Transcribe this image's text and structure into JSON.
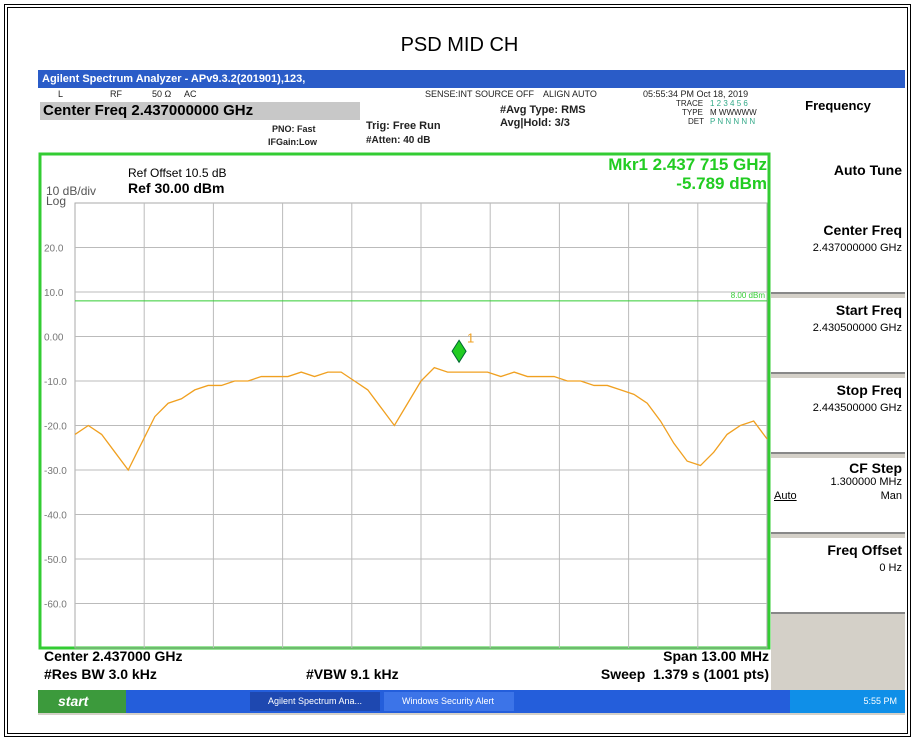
{
  "header": {
    "title": "PSD MID CH"
  },
  "window": {
    "title": "Agilent Spectrum Analyzer - APv9.3.2(201901),123,"
  },
  "status": {
    "input": "L",
    "rf": "RF",
    "impedance": "50 Ω",
    "coupling": "AC",
    "sense": "SENSE:INT",
    "source": "SOURCE OFF",
    "align": "ALIGN AUTO",
    "datetime": "05:55:34 PM Oct 18, 2019",
    "trace_label": "TRACE",
    "trace_value": "1 2 3 4 5 6",
    "type_label": "TYPE",
    "type_value": "M WWWWW",
    "det_label": "DET",
    "det_value": "P N N N N N"
  },
  "settings": {
    "center": "Center Freq 2.437000000 GHz",
    "pno": "PNO: Fast",
    "ifgain": "IFGain:Low",
    "trig": "Trig: Free Run",
    "atten": "#Atten: 40 dB",
    "avg_type": "#Avg Type: RMS",
    "avg_hold": "Avg|Hold: 3/3"
  },
  "plot": {
    "ref_offset": "Ref Offset 10.5 dB",
    "scale": "10 dB/div",
    "ref_level": "Ref 30.00 dBm",
    "mode": "Log",
    "marker_text": "Mkr1 2.437 715 GHz",
    "marker_value_text": "-5.789 dBm",
    "marker_label": "1",
    "marker": {
      "x": 2.437715,
      "y": -5.789
    },
    "display_line": {
      "value": 8,
      "label": "8.00 dBm"
    },
    "xlim": [
      2.4305,
      2.4435
    ],
    "ylim": [
      -70,
      30
    ],
    "yticks": [
      {
        "value": 20,
        "label": "20.0"
      },
      {
        "value": 10,
        "label": "10.0"
      },
      {
        "value": 0,
        "label": "0.00"
      },
      {
        "value": -10,
        "label": "-10.0"
      },
      {
        "value": -20,
        "label": "-20.0"
      },
      {
        "value": -30,
        "label": "-30.0"
      },
      {
        "value": -40,
        "label": "-40.0"
      },
      {
        "value": -50,
        "label": "-50.0"
      },
      {
        "value": -60,
        "label": "-60.0"
      }
    ],
    "trace": {
      "color": "#f0a020",
      "x": [
        2.4305,
        2.43075,
        2.431,
        2.43125,
        2.4315,
        2.43175,
        2.432,
        2.43225,
        2.4325,
        2.43275,
        2.433,
        2.43325,
        2.4335,
        2.43375,
        2.434,
        2.43425,
        2.4345,
        2.43475,
        2.435,
        2.43525,
        2.4355,
        2.43575,
        2.436,
        2.43625,
        2.4365,
        2.43675,
        2.437,
        2.43725,
        2.4375,
        2.43775,
        2.438,
        2.43825,
        2.4385,
        2.43875,
        2.439,
        2.43925,
        2.4395,
        2.43975,
        2.44,
        2.44025,
        2.4405,
        2.44075,
        2.441,
        2.44125,
        2.4415,
        2.44175,
        2.442,
        2.44225,
        2.4425,
        2.44275,
        2.443,
        2.44325,
        2.4435
      ],
      "y": [
        -22,
        -20,
        -22,
        -26,
        -30,
        -24,
        -18,
        -15,
        -14,
        -12,
        -11,
        -11,
        -10,
        -10,
        -9,
        -9,
        -9,
        -8,
        -9,
        -8,
        -8,
        -10,
        -12,
        -16,
        -20,
        -15,
        -10,
        -7,
        -8,
        -8,
        -8,
        -8,
        -9,
        -8,
        -9,
        -9,
        -9,
        -10,
        -10,
        -11,
        -11,
        -12,
        -13,
        -15,
        -19,
        -24,
        -28,
        -29,
        -26,
        -22,
        -20,
        -19,
        -23
      ]
    },
    "center": "Center 2.437000 GHz",
    "span": "Span 13.00 MHz",
    "rbw": "#Res BW 3.0 kHz",
    "vbw": "#VBW 9.1 kHz",
    "sweep": "Sweep  1.379 s (1001 pts)"
  },
  "softkeys": {
    "title": "Frequency",
    "auto_tune": "Auto Tune",
    "center_label": "Center Freq",
    "center_value": "2.437000000 GHz",
    "start_label": "Start Freq",
    "start_value": "2.430500000 GHz",
    "stop_label": "Stop Freq",
    "stop_value": "2.443500000 GHz",
    "step_label": "CF Step",
    "step_value": "1.300000 MHz",
    "step_auto": "Auto",
    "step_man": "Man",
    "offset_label": "Freq Offset",
    "offset_value": "0 Hz"
  },
  "taskbar": {
    "start": "start",
    "task1": "Agilent Spectrum Ana...",
    "task2": "Windows Security Alert",
    "clock": "5:55 PM"
  }
}
